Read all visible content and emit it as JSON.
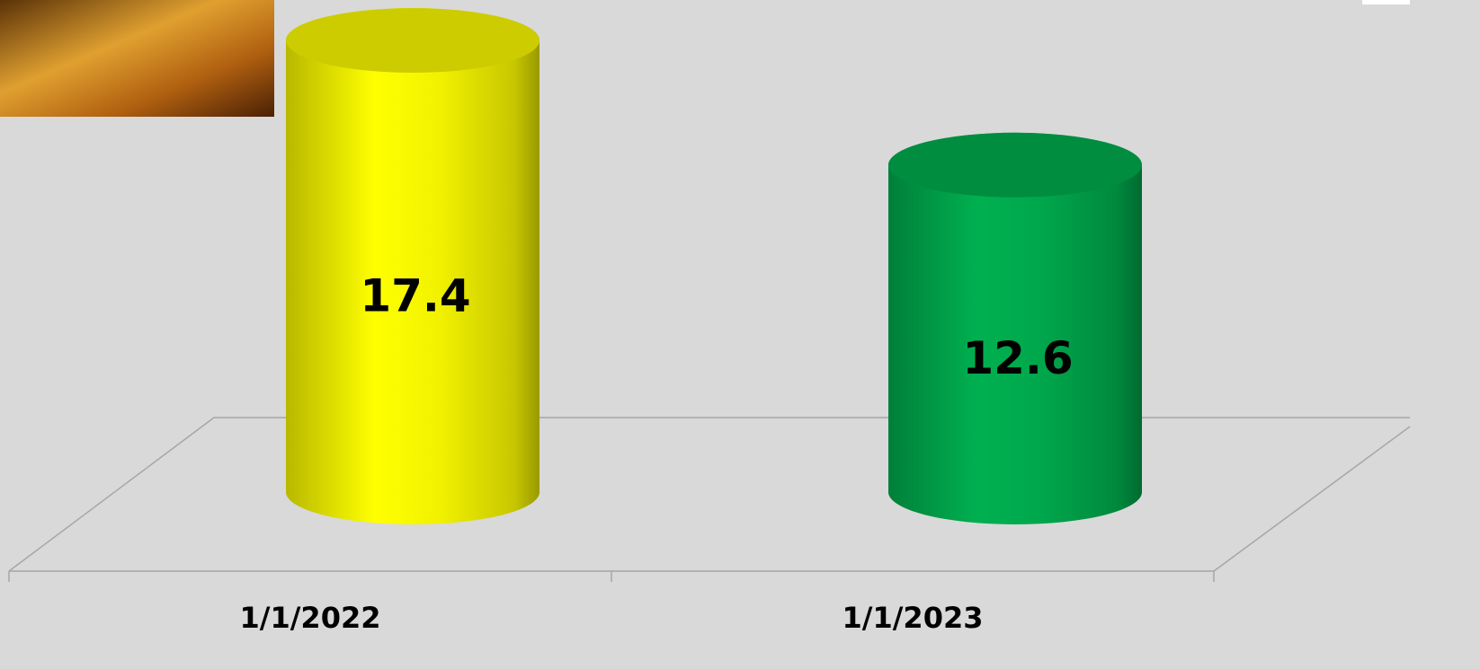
{
  "chart_data": {
    "type": "cylinder",
    "categories": [
      "1/1/2022",
      "1/1/2023"
    ],
    "values": [
      17.4,
      12.6
    ],
    "colors": [
      "#ffff00",
      "#00b050"
    ],
    "ylim": [
      0,
      17.4
    ]
  }
}
